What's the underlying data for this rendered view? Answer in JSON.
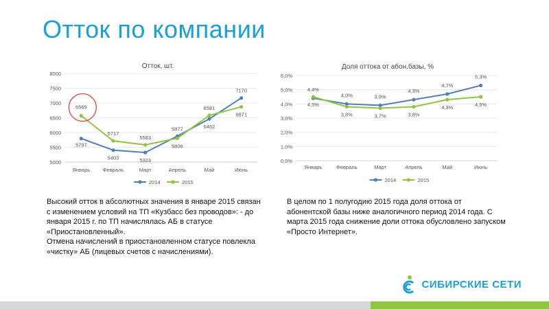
{
  "slide": {
    "title": "Отток по компании"
  },
  "colors": {
    "title": "#1aa0d8",
    "series_2014": "#4f7fbd",
    "series_2015": "#8cc63f",
    "highlight_circle": "#e0453a",
    "logo": "#1aa0d8"
  },
  "chart_data": [
    {
      "type": "line",
      "title": "Отток, шт.",
      "categories": [
        "Январь",
        "Февраль",
        "Март",
        "Апрель",
        "Май",
        "Июнь"
      ],
      "series": [
        {
          "name": "2014",
          "values": [
            5797,
            5403,
            5323,
            5877,
            6462,
            7170
          ],
          "labels": [
            "5797",
            "5403",
            "5323",
            "5877",
            "6462",
            "7170"
          ]
        },
        {
          "name": "2015",
          "values": [
            6569,
            5717,
            5583,
            5806,
            6581,
            6871
          ],
          "labels": [
            "6569",
            "5717",
            "5583",
            "5806",
            "6581",
            "6871"
          ]
        }
      ],
      "ylim": [
        5000,
        8000
      ],
      "yticks": [
        5000,
        5500,
        6000,
        6500,
        7000,
        7500,
        8000
      ],
      "ytick_labels": [
        "5000",
        "5500",
        "6000",
        "6500",
        "7000",
        "7500",
        "8000"
      ],
      "grid": true,
      "legend": "bottom",
      "highlight": {
        "series": "2015",
        "category": "Январь"
      }
    },
    {
      "type": "line",
      "title": "Доля оттока от абон.базы, %",
      "categories": [
        "Январь",
        "Февраль",
        "Март",
        "Апрель",
        "Май",
        "Июнь"
      ],
      "series": [
        {
          "name": "2014",
          "values": [
            4.4,
            4.0,
            3.9,
            4.3,
            4.7,
            5.3
          ],
          "labels": [
            "4,4%",
            "4,0%",
            "3,9%",
            "4,3%",
            "4,7%",
            "5,3%"
          ]
        },
        {
          "name": "2015",
          "values": [
            4.5,
            3.8,
            3.7,
            3.8,
            4.3,
            4.5
          ],
          "labels": [
            "4,5%",
            "3,8%",
            "3,7%",
            "3,8%",
            "4,3%",
            "4,5%"
          ]
        }
      ],
      "ylim": [
        0,
        6
      ],
      "yticks": [
        0,
        1,
        2,
        3,
        4,
        5,
        6
      ],
      "ytick_labels": [
        "0,0%",
        "1,0%",
        "2,0%",
        "3,0%",
        "4,0%",
        "5,0%",
        "6,0%"
      ],
      "grid": true,
      "legend": "bottom"
    }
  ],
  "notes": {
    "left": [
      "Высокий отток в абсолютных значения в январе 2015 связан с изменением условий на ТП «Кузбасс без проводов»: - до января 2015 г. по ТП начислялась АБ в статусе «Приостановленный».",
      "Отмена начислений в приостановленном статусе повлекла «чистку» АБ (лицевых счетов с начислениями)."
    ],
    "right": [
      "В целом по 1 полугодию 2015 года доля оттока от абонентской базы  ниже аналогичного период 2014 года. С марта 2015 года снижение доли оттока обусловлено запуском «Просто Интернет»."
    ]
  },
  "logo": {
    "text": "СИБИРСКИЕ СЕТИ",
    "icon": "sibirskie-seti-logo-icon"
  }
}
